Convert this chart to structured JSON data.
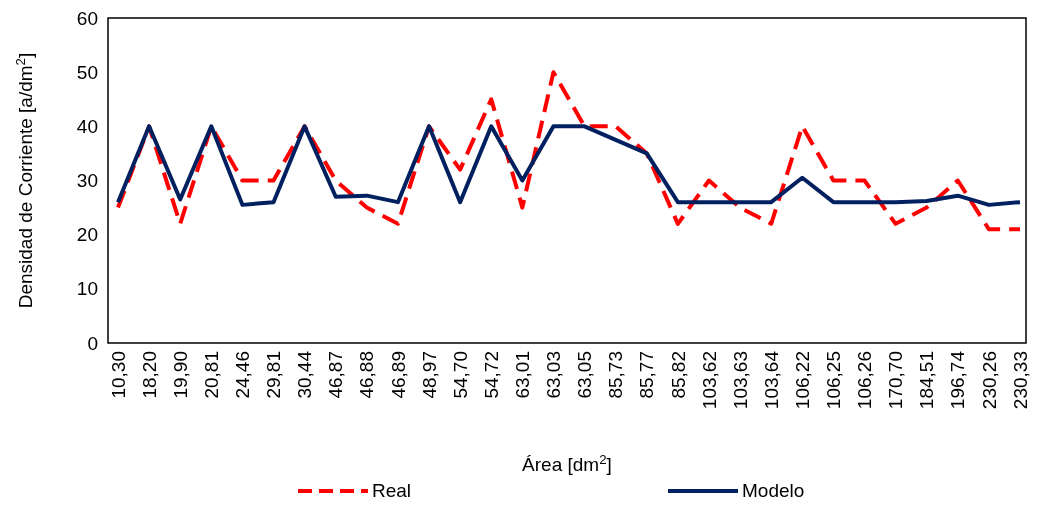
{
  "chart_data": {
    "type": "line",
    "xlabel": "Área [dm$^{2}$]",
    "ylabel": "Densidad de Corriente [a/dm$^{2}$]",
    "categories": [
      "10,30",
      "18,20",
      "19,90",
      "20,81",
      "24,46",
      "29,81",
      "30,44",
      "46,87",
      "46,88",
      "46,89",
      "48,97",
      "54,70",
      "54,72",
      "63,01",
      "63,03",
      "63,05",
      "85,73",
      "85,77",
      "85,82",
      "103,62",
      "103,63",
      "103,64",
      "106,22",
      "106,25",
      "106,26",
      "170,70",
      "184,51",
      "196,74",
      "230,26",
      "230,33"
    ],
    "series": [
      {
        "name": "Real",
        "color": "#ff0000",
        "line_style": "dashed",
        "values": [
          25,
          40,
          22,
          40,
          30,
          30,
          40,
          30,
          25,
          22,
          40,
          32,
          45,
          25,
          50,
          40,
          40,
          35,
          22,
          30,
          25,
          22,
          40,
          30,
          30,
          22,
          25,
          30,
          21,
          21
        ]
      },
      {
        "name": "Modelo",
        "color": "#002060",
        "line_style": "solid",
        "values": [
          26,
          40,
          26.5,
          40,
          25.5,
          26,
          40,
          27,
          27.2,
          26,
          40,
          26,
          40,
          30,
          40,
          40,
          37.5,
          35,
          26,
          26,
          26,
          26,
          30.5,
          26,
          26,
          26,
          26.2,
          27.2,
          25.5,
          26
        ]
      }
    ],
    "ylim": [
      0,
      60
    ],
    "yticks": [
      0,
      10,
      20,
      30,
      40,
      50,
      60
    ],
    "legend": "bottom"
  }
}
